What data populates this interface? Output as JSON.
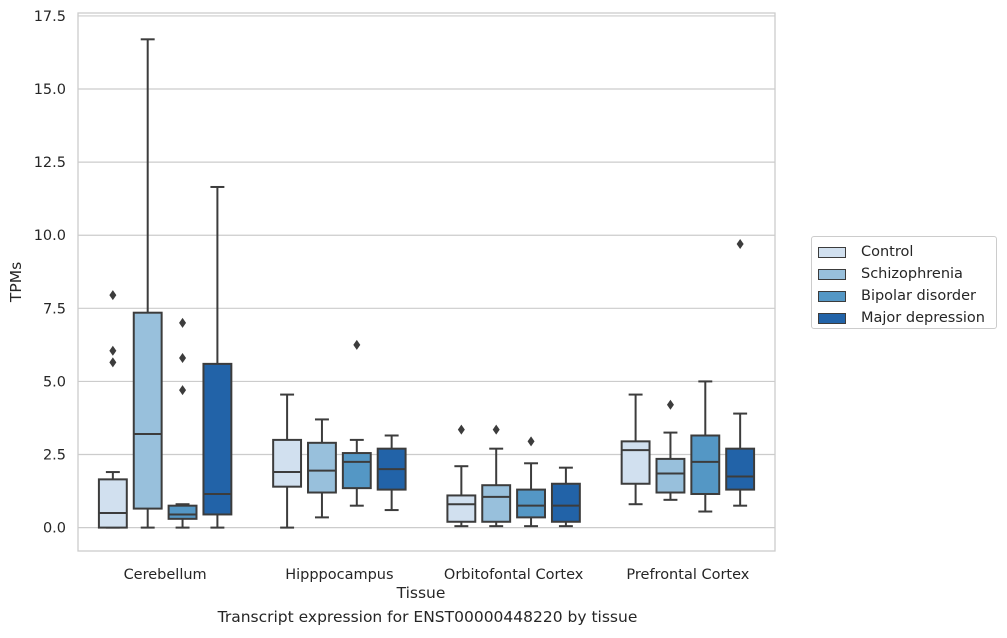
{
  "chart_data": {
    "type": "box",
    "title": "Transcript expression for ENST00000448220 by tissue",
    "xlabel": "Tissue",
    "ylabel": "TPMs",
    "ylim": [
      -0.8,
      17.6
    ],
    "yticks": [
      "0.0",
      "2.5",
      "5.0",
      "7.5",
      "10.0",
      "12.5",
      "15.0",
      "17.5"
    ],
    "ytick_values": [
      0,
      2.5,
      5,
      7.5,
      10,
      12.5,
      15,
      17.5
    ],
    "categories": [
      "Cerebellum",
      "Hipppocampus",
      "Orbitofontal Cortex",
      "Prefrontal Cortex"
    ],
    "grid": "horizontal",
    "legend_position": "right",
    "series": [
      {
        "name": "Control",
        "color": "#d1e0ef",
        "boxes": [
          {
            "whisker_low": 0.0,
            "q1": 0.0,
            "median": 0.5,
            "q3": 1.65,
            "whisker_high": 1.9,
            "outliers": [
              5.65,
              6.05,
              7.95
            ]
          },
          {
            "whisker_low": 0.0,
            "q1": 1.4,
            "median": 1.9,
            "q3": 3.0,
            "whisker_high": 4.55,
            "outliers": []
          },
          {
            "whisker_low": 0.05,
            "q1": 0.2,
            "median": 0.8,
            "q3": 1.1,
            "whisker_high": 2.1,
            "outliers": [
              3.35
            ]
          },
          {
            "whisker_low": 0.8,
            "q1": 1.5,
            "median": 2.65,
            "q3": 2.95,
            "whisker_high": 4.55,
            "outliers": []
          }
        ]
      },
      {
        "name": "Schizophrenia",
        "color": "#98c0dc",
        "boxes": [
          {
            "whisker_low": 0.0,
            "q1": 0.65,
            "median": 3.2,
            "q3": 7.35,
            "whisker_high": 16.7,
            "outliers": []
          },
          {
            "whisker_low": 0.35,
            "q1": 1.2,
            "median": 1.95,
            "q3": 2.9,
            "whisker_high": 3.7,
            "outliers": []
          },
          {
            "whisker_low": 0.05,
            "q1": 0.2,
            "median": 1.05,
            "q3": 1.45,
            "whisker_high": 2.7,
            "outliers": [
              3.35
            ]
          },
          {
            "whisker_low": 0.95,
            "q1": 1.2,
            "median": 1.85,
            "q3": 2.35,
            "whisker_high": 3.25,
            "outliers": [
              4.2
            ]
          }
        ]
      },
      {
        "name": "Bipolar disorder",
        "color": "#5497c5",
        "boxes": [
          {
            "whisker_low": 0.0,
            "q1": 0.3,
            "median": 0.45,
            "q3": 0.75,
            "whisker_high": 0.8,
            "outliers": [
              4.7,
              5.8,
              7.0
            ]
          },
          {
            "whisker_low": 0.75,
            "q1": 1.35,
            "median": 2.25,
            "q3": 2.55,
            "whisker_high": 3.0,
            "outliers": [
              6.25
            ]
          },
          {
            "whisker_low": 0.05,
            "q1": 0.35,
            "median": 0.75,
            "q3": 1.3,
            "whisker_high": 2.2,
            "outliers": [
              2.95
            ]
          },
          {
            "whisker_low": 0.55,
            "q1": 1.15,
            "median": 2.25,
            "q3": 3.15,
            "whisker_high": 5.0,
            "outliers": []
          }
        ]
      },
      {
        "name": "Major depression",
        "color": "#2263a8",
        "boxes": [
          {
            "whisker_low": 0.0,
            "q1": 0.45,
            "median": 1.15,
            "q3": 5.6,
            "whisker_high": 11.65,
            "outliers": []
          },
          {
            "whisker_low": 0.6,
            "q1": 1.3,
            "median": 2.0,
            "q3": 2.7,
            "whisker_high": 3.15,
            "outliers": []
          },
          {
            "whisker_low": 0.05,
            "q1": 0.2,
            "median": 0.75,
            "q3": 1.5,
            "whisker_high": 2.05,
            "outliers": []
          },
          {
            "whisker_low": 0.75,
            "q1": 1.3,
            "median": 1.75,
            "q3": 2.7,
            "whisker_high": 3.9,
            "outliers": [
              9.7
            ]
          }
        ]
      }
    ]
  }
}
